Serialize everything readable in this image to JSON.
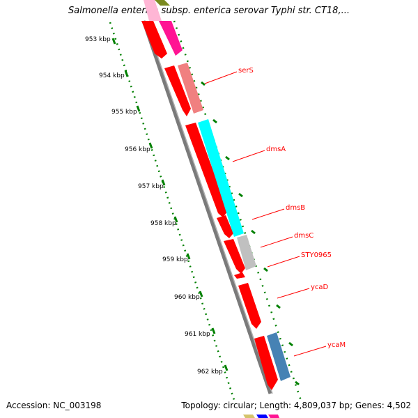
{
  "title": "Salmonella enterica subsp. enterica serovar Typhi str. CT18,...",
  "accession": "Accession: NC_003198",
  "summary": "Topology: circular; Length: 4,809,037 bp; Genes: 4,502",
  "scale_labels": [
    "953 kbp",
    "954 kbp",
    "955 kbp",
    "956 kbp",
    "957 kbp",
    "958 kbp",
    "959 kbp",
    "960 kbp",
    "961 kbp",
    "962 kbp"
  ],
  "gene_labels": [
    "serS",
    "dmsA",
    "dmsB",
    "dmsC",
    "STY0965",
    "ycaD",
    "ycaM"
  ],
  "colors": {
    "feature_red": "#ff0000",
    "scale_green": "#008000",
    "backbone": "#808080",
    "label_red": "#ff0000",
    "serS": "#f08080",
    "dmsA": "#00ffff",
    "dmsC": "#c0c0c0",
    "ycaM": "#4682b4",
    "magenta": "#ff1493"
  }
}
